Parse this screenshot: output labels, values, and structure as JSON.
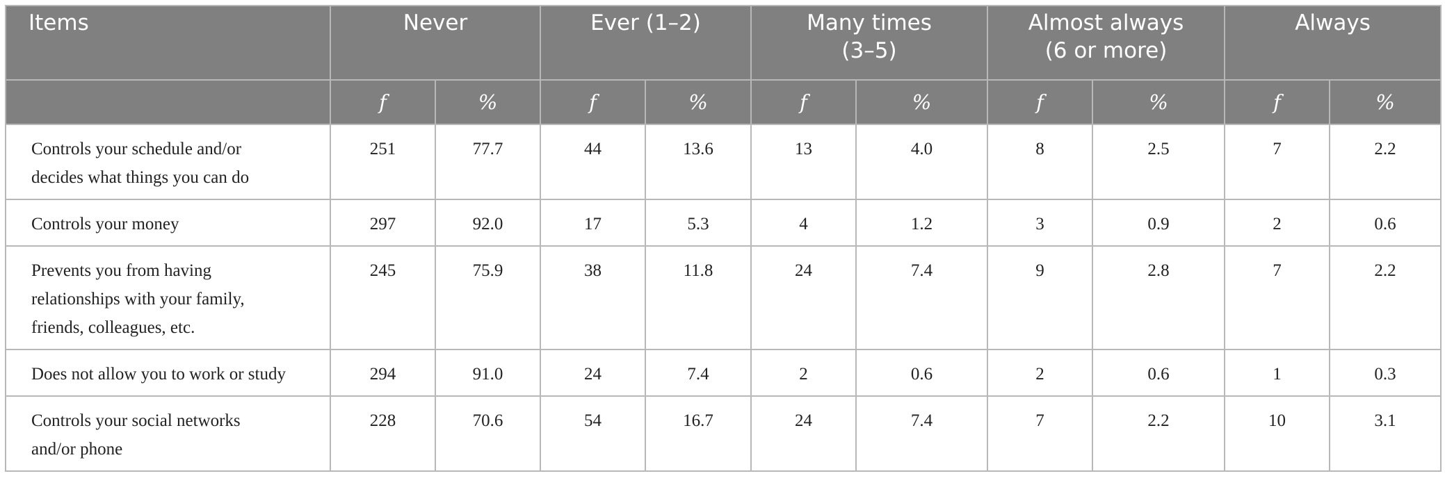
{
  "table": {
    "header": [
      "Items",
      "Never",
      "Ever (1–2)",
      "Many times\n(3–5)",
      "Almost always\n(6 or more)",
      "Always"
    ],
    "subheader": [
      "f",
      "%",
      "f",
      "%",
      "f",
      "%",
      "f",
      "%",
      "f",
      "%"
    ],
    "rows": [
      [
        "Controls your schedule and/or decides what things you can do",
        "251",
        "77.7",
        "44",
        "13.6",
        "13",
        "4.0",
        "8",
        "2.5",
        "7",
        "2.2"
      ],
      [
        "Controls your money",
        "297",
        "92.0",
        "17",
        "5.3",
        "4",
        "1.2",
        "3",
        "0.9",
        "2",
        "0.6"
      ],
      [
        "Prevents you from having relationships with your family, friends, colleagues, etc.",
        "245",
        "75.9",
        "38",
        "11.8",
        "24",
        "7.4",
        "9",
        "2.8",
        "7",
        "2.2"
      ],
      [
        "Does not allow you to work or study",
        "294",
        "91.0",
        "24",
        "7.4",
        "2",
        "0.6",
        "2",
        "0.6",
        "1",
        "0.3"
      ],
      [
        "Controls your social networks and/or phone",
        "228",
        "70.6",
        "54",
        "16.7",
        "24",
        "7.4",
        "7",
        "2.2",
        "10",
        "3.1"
      ]
    ]
  }
}
